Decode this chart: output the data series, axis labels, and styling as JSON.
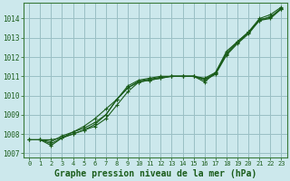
{
  "background_color": "#cce8ec",
  "plot_bg_color": "#cce8ec",
  "grid_color": "#9abfc4",
  "line_color": "#1a5c1a",
  "marker_color": "#1a5c1a",
  "xlabel": "Graphe pression niveau de la mer (hPa)",
  "xlabel_fontsize": 7,
  "xlim": [
    -0.5,
    23.5
  ],
  "ylim": [
    1006.8,
    1014.8
  ],
  "yticks": [
    1007,
    1008,
    1009,
    1010,
    1011,
    1012,
    1013,
    1014
  ],
  "xticks": [
    0,
    1,
    2,
    3,
    4,
    5,
    6,
    7,
    8,
    9,
    10,
    11,
    12,
    13,
    14,
    15,
    16,
    17,
    18,
    19,
    20,
    21,
    22,
    23
  ],
  "series": [
    {
      "x": [
        0,
        1,
        2,
        3,
        4,
        5,
        6,
        7,
        8,
        9,
        10,
        11,
        12,
        13,
        14,
        15,
        16,
        17,
        18,
        19,
        20,
        21,
        22,
        23
      ],
      "y": [
        1007.7,
        1007.7,
        1007.4,
        1007.8,
        1008.0,
        1008.2,
        1008.5,
        1009.0,
        1009.8,
        1010.4,
        1010.7,
        1010.8,
        1010.9,
        1011.0,
        1011.0,
        1011.0,
        1010.8,
        1011.1,
        1012.1,
        1012.7,
        1013.2,
        1013.9,
        1014.0,
        1014.5
      ]
    },
    {
      "x": [
        0,
        1,
        2,
        3,
        4,
        5,
        6,
        7,
        8,
        9,
        10,
        11,
        12,
        13,
        14,
        15,
        16,
        17,
        18,
        19,
        20,
        21,
        22,
        23
      ],
      "y": [
        1007.7,
        1007.7,
        1007.5,
        1007.8,
        1008.0,
        1008.2,
        1008.4,
        1008.8,
        1009.5,
        1010.2,
        1010.7,
        1010.8,
        1010.9,
        1011.0,
        1011.0,
        1011.0,
        1010.9,
        1011.2,
        1012.2,
        1012.8,
        1013.3,
        1013.9,
        1014.1,
        1014.5
      ]
    },
    {
      "x": [
        1,
        2,
        3,
        4,
        5,
        6,
        7,
        8,
        9,
        10,
        11,
        12,
        13,
        14,
        15,
        16,
        17,
        18,
        19,
        20,
        21,
        22,
        23
      ],
      "y": [
        1007.7,
        1007.7,
        1007.8,
        1008.1,
        1008.4,
        1008.8,
        1009.3,
        1009.8,
        1010.5,
        1010.8,
        1010.9,
        1011.0,
        1011.0,
        1011.0,
        1011.0,
        1010.7,
        1011.2,
        1012.3,
        1012.8,
        1013.3,
        1014.0,
        1014.2,
        1014.6
      ]
    },
    {
      "x": [
        0,
        1,
        2,
        3,
        4,
        5,
        6,
        7,
        8,
        9,
        10,
        11,
        12,
        13,
        14,
        15,
        16,
        17,
        18,
        19,
        20,
        21,
        22,
        23
      ],
      "y": [
        1007.7,
        1007.7,
        1007.6,
        1007.9,
        1008.1,
        1008.3,
        1008.6,
        1009.0,
        1009.8,
        1010.4,
        1010.75,
        1010.85,
        1010.95,
        1011.0,
        1011.0,
        1011.0,
        1010.85,
        1011.15,
        1012.15,
        1012.75,
        1013.25,
        1013.95,
        1014.05,
        1014.55
      ]
    }
  ]
}
